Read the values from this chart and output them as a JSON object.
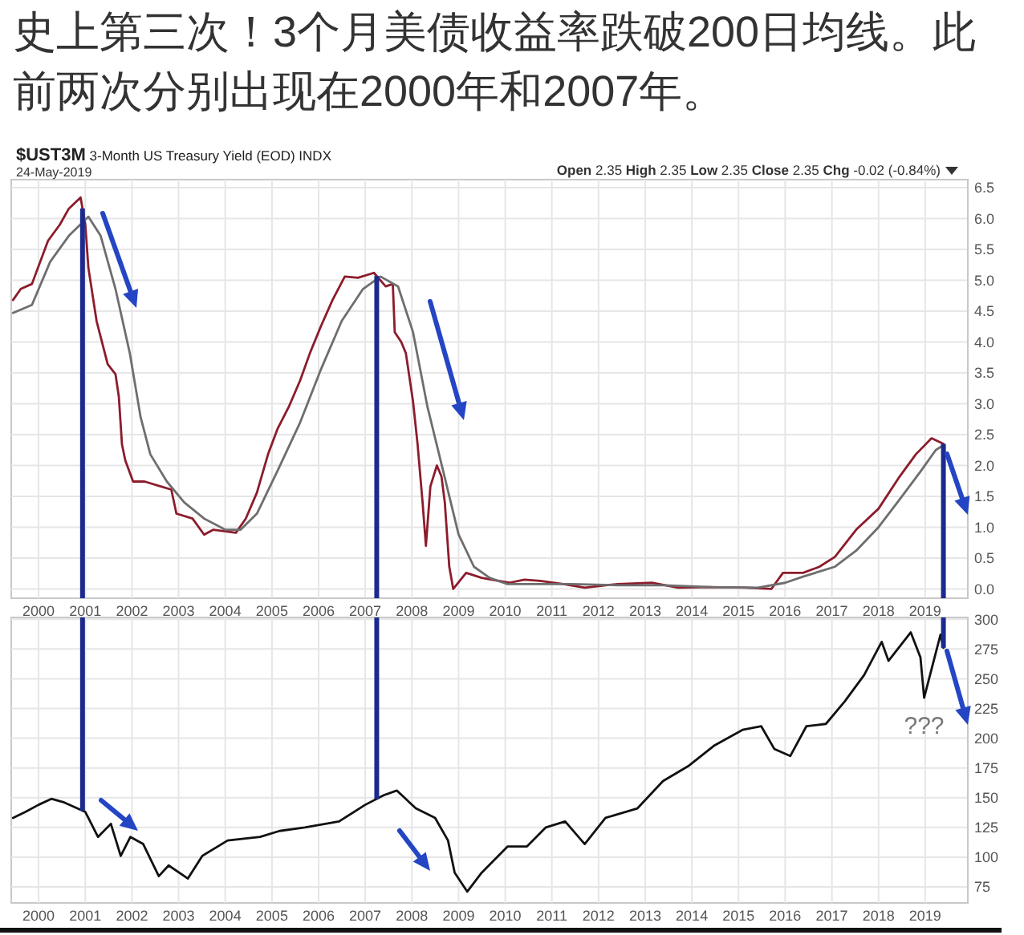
{
  "chart_data": [
    {
      "type": "line",
      "title": "史上第三次！3个月美债收益率跌破200日均线。此前两次分别出现在2000年和2007年。",
      "subtitle": "$UST3M 3-Month US Treasury Yield (EOD) INDX",
      "annotations": [
        "24-May-2019",
        "Open 2.35 High 2.35 Low 2.35 Close 2.35 Chg -0.02 (-0.84%)"
      ],
      "xlim": [
        "1999-06-01",
        "2019-12-01"
      ],
      "xticks": [
        "2000",
        "2001",
        "2002",
        "2003",
        "2004",
        "2005",
        "2006",
        "2007",
        "2008",
        "2009",
        "2010",
        "2011",
        "2012",
        "2013",
        "2014",
        "2015",
        "2016",
        "2017",
        "2018",
        "2019"
      ],
      "ylim": [
        -0.15,
        6.63
      ],
      "yticks": [
        {
          "value": 0,
          "label": "0.0"
        },
        0.5,
        {
          "value": 1,
          "label": "1.0"
        },
        1.5,
        {
          "value": 2,
          "label": "2.0"
        },
        2.5,
        {
          "value": 3,
          "label": "3.0"
        },
        3.5,
        {
          "value": 4,
          "label": "4.0"
        },
        4.5,
        {
          "value": 5,
          "label": "5.0"
        },
        5.5,
        {
          "value": 6,
          "label": "6.0"
        },
        6.5
      ],
      "grid": true,
      "ref_lines": [
        {
          "axis": "x",
          "value": "2000-12-10",
          "color": "#1c2a8f"
        },
        {
          "axis": "x",
          "value": "2007-04-01",
          "color": "#1c2a8f"
        },
        {
          "axis": "x",
          "value": "2019-05-24",
          "color": "#1c2a8f"
        }
      ],
      "series": [
        {
          "color": "#8c1c2c",
          "x": [
            "1999-06-15",
            "1999-08-15",
            "1999-11-10",
            "2000-03-15",
            "2000-06-15",
            "2000-08-25",
            "2000-11-25",
            "2001-01-01",
            "2001-01-25",
            "2001-03-30",
            "2001-06-25",
            "2001-08-25",
            "2001-09-20",
            "2001-10-15",
            "2001-11-10",
            "2002-01-10",
            "2002-04-10",
            "2002-08-15",
            "2002-11-05",
            "2002-12-15",
            "2003-04-20",
            "2003-07-20",
            "2003-10-01",
            "2004-03-25",
            "2004-06-10",
            "2004-09-05",
            "2004-12-01",
            "2005-02-15",
            "2005-05-15",
            "2005-08-10",
            "2005-10-25",
            "2006-01-20",
            "2006-04-20",
            "2006-07-25",
            "2006-11-05",
            "2007-03-10",
            "2007-06-10",
            "2007-08-05",
            "2007-08-20",
            "2007-10-10",
            "2007-11-15",
            "2008-01-10",
            "2008-02-15",
            "2008-03-25",
            "2008-04-20",
            "2008-05-25",
            "2008-07-15",
            "2008-08-20",
            "2008-09-15",
            "2008-10-20",
            "2008-11-20",
            "2009-03-01",
            "2009-07-01",
            "2010-02-01",
            "2010-06-01",
            "2010-10-01",
            "2011-04-01",
            "2011-09-15",
            "2012-06-01",
            "2013-03-01",
            "2013-09-15",
            "2014-06-01",
            "2015-03-01",
            "2015-09-15",
            "2015-12-15",
            "2016-05-20",
            "2016-09-25",
            "2017-01-25",
            "2017-07-10",
            "2018-01-01",
            "2018-06-15",
            "2018-10-20",
            "2019-02-20",
            "2019-05-24"
          ],
          "values": [
            4.68,
            4.86,
            4.94,
            5.64,
            5.9,
            6.16,
            6.34,
            5.9,
            5.2,
            4.34,
            3.64,
            3.48,
            3.12,
            2.34,
            2.08,
            1.74,
            1.74,
            1.66,
            1.61,
            1.22,
            1.14,
            0.88,
            0.96,
            0.91,
            1.14,
            1.56,
            2.18,
            2.6,
            2.96,
            3.38,
            3.82,
            4.26,
            4.68,
            5.06,
            5.04,
            5.12,
            4.9,
            4.94,
            4.16,
            4.0,
            3.82,
            3.04,
            2.34,
            1.4,
            0.7,
            1.66,
            2.0,
            1.82,
            1.4,
            0.36,
            0.0,
            0.26,
            0.18,
            0.1,
            0.15,
            0.13,
            0.08,
            0.02,
            0.08,
            0.1,
            0.02,
            0.03,
            0.02,
            0.0,
            0.26,
            0.26,
            0.36,
            0.52,
            0.96,
            1.3,
            1.82,
            2.18,
            2.44,
            2.35
          ]
        },
        {
          "color": "#6e6e6e",
          "x": [
            "1999-06-15",
            "1999-11-10",
            "2000-04-01",
            "2000-08-25",
            "2001-01-25",
            "2001-05-01",
            "2001-08-25",
            "2001-12-15",
            "2002-03-10",
            "2002-05-25",
            "2002-10-01",
            "2003-02-15",
            "2003-07-20",
            "2004-01-01",
            "2004-05-01",
            "2004-09-05",
            "2005-02-15",
            "2005-08-10",
            "2006-01-20",
            "2006-07-01",
            "2006-12-15",
            "2007-05-01",
            "2007-09-15",
            "2008-01-10",
            "2008-05-01",
            "2008-09-01",
            "2009-01-01",
            "2009-05-01",
            "2009-09-01",
            "2010-01-15",
            "2011-06-01",
            "2012-06-01",
            "2013-06-01",
            "2014-06-01",
            "2015-06-01",
            "2016-01-01",
            "2016-05-20",
            "2017-01-25",
            "2017-07-10",
            "2018-01-01",
            "2018-06-15",
            "2018-11-25",
            "2019-03-25",
            "2019-05-24"
          ],
          "values": [
            4.47,
            4.6,
            5.3,
            5.72,
            6.03,
            5.72,
            4.86,
            3.82,
            2.78,
            2.18,
            1.74,
            1.4,
            1.14,
            0.96,
            0.96,
            1.22,
            1.92,
            2.7,
            3.56,
            4.34,
            4.86,
            5.06,
            4.9,
            4.16,
            2.96,
            1.92,
            0.88,
            0.36,
            0.18,
            0.08,
            0.08,
            0.06,
            0.06,
            0.03,
            0.02,
            0.1,
            0.2,
            0.36,
            0.62,
            1.0,
            1.45,
            1.9,
            2.25,
            2.33
          ]
        }
      ]
    },
    {
      "type": "line",
      "annotations": [
        {
          "text": "???",
          "x": "2018-12-24",
          "y": 234
        }
      ],
      "xlim": [
        "1999-06-01",
        "2019-12-01"
      ],
      "xticks": [
        "2000",
        "2001",
        "2002",
        "2003",
        "2004",
        "2005",
        "2006",
        "2007",
        "2008",
        "2009",
        "2010",
        "2011",
        "2012",
        "2013",
        "2014",
        "2015",
        "2016",
        "2017",
        "2018",
        "2019"
      ],
      "ylim": [
        61.5,
        301.5
      ],
      "yticks": [
        75,
        100,
        125,
        150,
        175,
        200,
        225,
        250,
        275,
        300
      ],
      "grid": true,
      "ref_lines": [
        {
          "axis": "x",
          "value": "2000-12-10",
          "color": "#1c2a8f"
        },
        {
          "axis": "x",
          "value": "2007-04-01",
          "color": "#1c2a8f"
        },
        {
          "axis": "x",
          "value": "2019-05-24",
          "color": "#1c2a8f"
        }
      ],
      "series": [
        {
          "color": "#111111",
          "x": [
            "1999-06-15",
            "1999-09-20",
            "2000-01-01",
            "2000-04-10",
            "2000-07-20",
            "2001-01-01",
            "2001-04-10",
            "2001-07-20",
            "2001-10-05",
            "2001-12-20",
            "2002-03-30",
            "2002-07-30",
            "2002-10-15",
            "2003-03-15",
            "2003-07-05",
            "2004-01-20",
            "2004-10-01",
            "2005-03-01",
            "2005-09-15",
            "2006-06-10",
            "2007-01-01",
            "2007-05-25",
            "2007-09-05",
            "2008-02-01",
            "2008-07-01",
            "2008-10-10",
            "2008-12-01",
            "2009-03-10",
            "2009-07-01",
            "2010-01-20",
            "2010-06-20",
            "2010-11-15",
            "2011-04-15",
            "2011-09-15",
            "2012-02-25",
            "2012-11-01",
            "2013-05-20",
            "2013-12-10",
            "2014-06-28",
            "2015-02-01",
            "2015-06-28",
            "2015-10-08",
            "2016-02-10",
            "2016-06-15",
            "2016-11-15",
            "2017-04-12",
            "2017-09-10",
            "2018-01-26",
            "2018-03-20",
            "2018-09-10",
            "2018-11-25",
            "2018-12-24",
            "2019-03-28",
            "2019-05-01",
            "2019-05-24"
          ],
          "values": [
            133,
            138,
            144,
            149,
            146,
            138,
            117,
            128,
            101,
            117,
            111,
            84,
            93,
            82,
            101,
            114,
            117,
            122,
            125,
            130,
            144,
            152,
            156,
            141,
            133,
            114,
            87,
            71,
            87,
            109,
            109,
            125,
            130,
            111,
            133,
            141,
            164,
            177,
            194,
            207,
            210,
            191,
            185,
            210,
            212,
            231,
            253,
            281,
            265,
            289,
            268,
            234,
            273,
            287,
            276
          ]
        }
      ]
    }
  ]
}
